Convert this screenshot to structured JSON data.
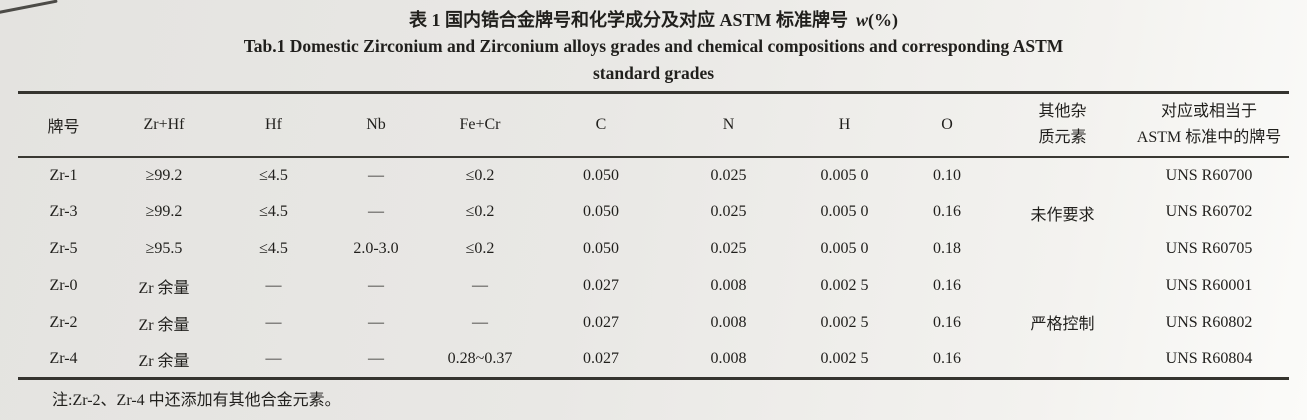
{
  "colors": {
    "paper": "#e9e8e5",
    "ink": "#201f1c",
    "rule": "#35342f"
  },
  "title": {
    "zh_main": "表 1 国内锆合金牌号和化学成分及对应 ASTM 标准牌号",
    "zh_var": "w",
    "zh_unit": "(%)",
    "en_line1": "Tab.1 Domestic Zirconium and Zirconium alloys grades and chemical compositions and corresponding ASTM",
    "en_line2": "standard grades"
  },
  "table": {
    "header": {
      "grade": "牌号",
      "zr_hf": "Zr+Hf",
      "hf": "Hf",
      "nb": "Nb",
      "fe_cr": "Fe+Cr",
      "c": "C",
      "n": "N",
      "h": "H",
      "o": "O",
      "impurity_line1": "其他杂",
      "impurity_line2": "质元素",
      "astm_line1": "对应或相当于",
      "astm_line2": "ASTM 标准中的牌号"
    },
    "rows": [
      {
        "grade": "Zr-1",
        "zr_hf": "≥99.2",
        "hf": "≤4.5",
        "nb": "—",
        "fe_cr": "≤0.2",
        "c": "0.050",
        "n": "0.025",
        "h": "0.005 0",
        "o": "0.10",
        "astm": "UNS R60700"
      },
      {
        "grade": "Zr-3",
        "zr_hf": "≥99.2",
        "hf": "≤4.5",
        "nb": "—",
        "fe_cr": "≤0.2",
        "c": "0.050",
        "n": "0.025",
        "h": "0.005 0",
        "o": "0.16",
        "astm": "UNS R60702"
      },
      {
        "grade": "Zr-5",
        "zr_hf": "≥95.5",
        "hf": "≤4.5",
        "nb": "2.0-3.0",
        "fe_cr": "≤0.2",
        "c": "0.050",
        "n": "0.025",
        "h": "0.005 0",
        "o": "0.18",
        "astm": "UNS R60705"
      },
      {
        "grade": "Zr-0",
        "zr_hf": "Zr 余量",
        "hf": "—",
        "nb": "—",
        "fe_cr": "—",
        "c": "0.027",
        "n": "0.008",
        "h": "0.002 5",
        "o": "0.16",
        "astm": "UNS R60001"
      },
      {
        "grade": "Zr-2",
        "zr_hf": "Zr 余量",
        "hf": "—",
        "nb": "—",
        "fe_cr": "—",
        "c": "0.027",
        "n": "0.008",
        "h": "0.002 5",
        "o": "0.16",
        "astm": "UNS R60802"
      },
      {
        "grade": "Zr-4",
        "zr_hf": "Zr 余量",
        "hf": "—",
        "nb": "—",
        "fe_cr": "0.28~0.37",
        "c": "0.027",
        "n": "0.008",
        "h": "0.002 5",
        "o": "0.16",
        "astm": "UNS R60804"
      }
    ],
    "impurity_groups": [
      {
        "label": "未作要求",
        "applies_to": [
          "Zr-1",
          "Zr-3",
          "Zr-5"
        ]
      },
      {
        "label": "严格控制",
        "applies_to": [
          "Zr-0",
          "Zr-2",
          "Zr-4"
        ]
      }
    ]
  },
  "footnote": "注:Zr-2、Zr-4 中还添加有其他合金元素。"
}
